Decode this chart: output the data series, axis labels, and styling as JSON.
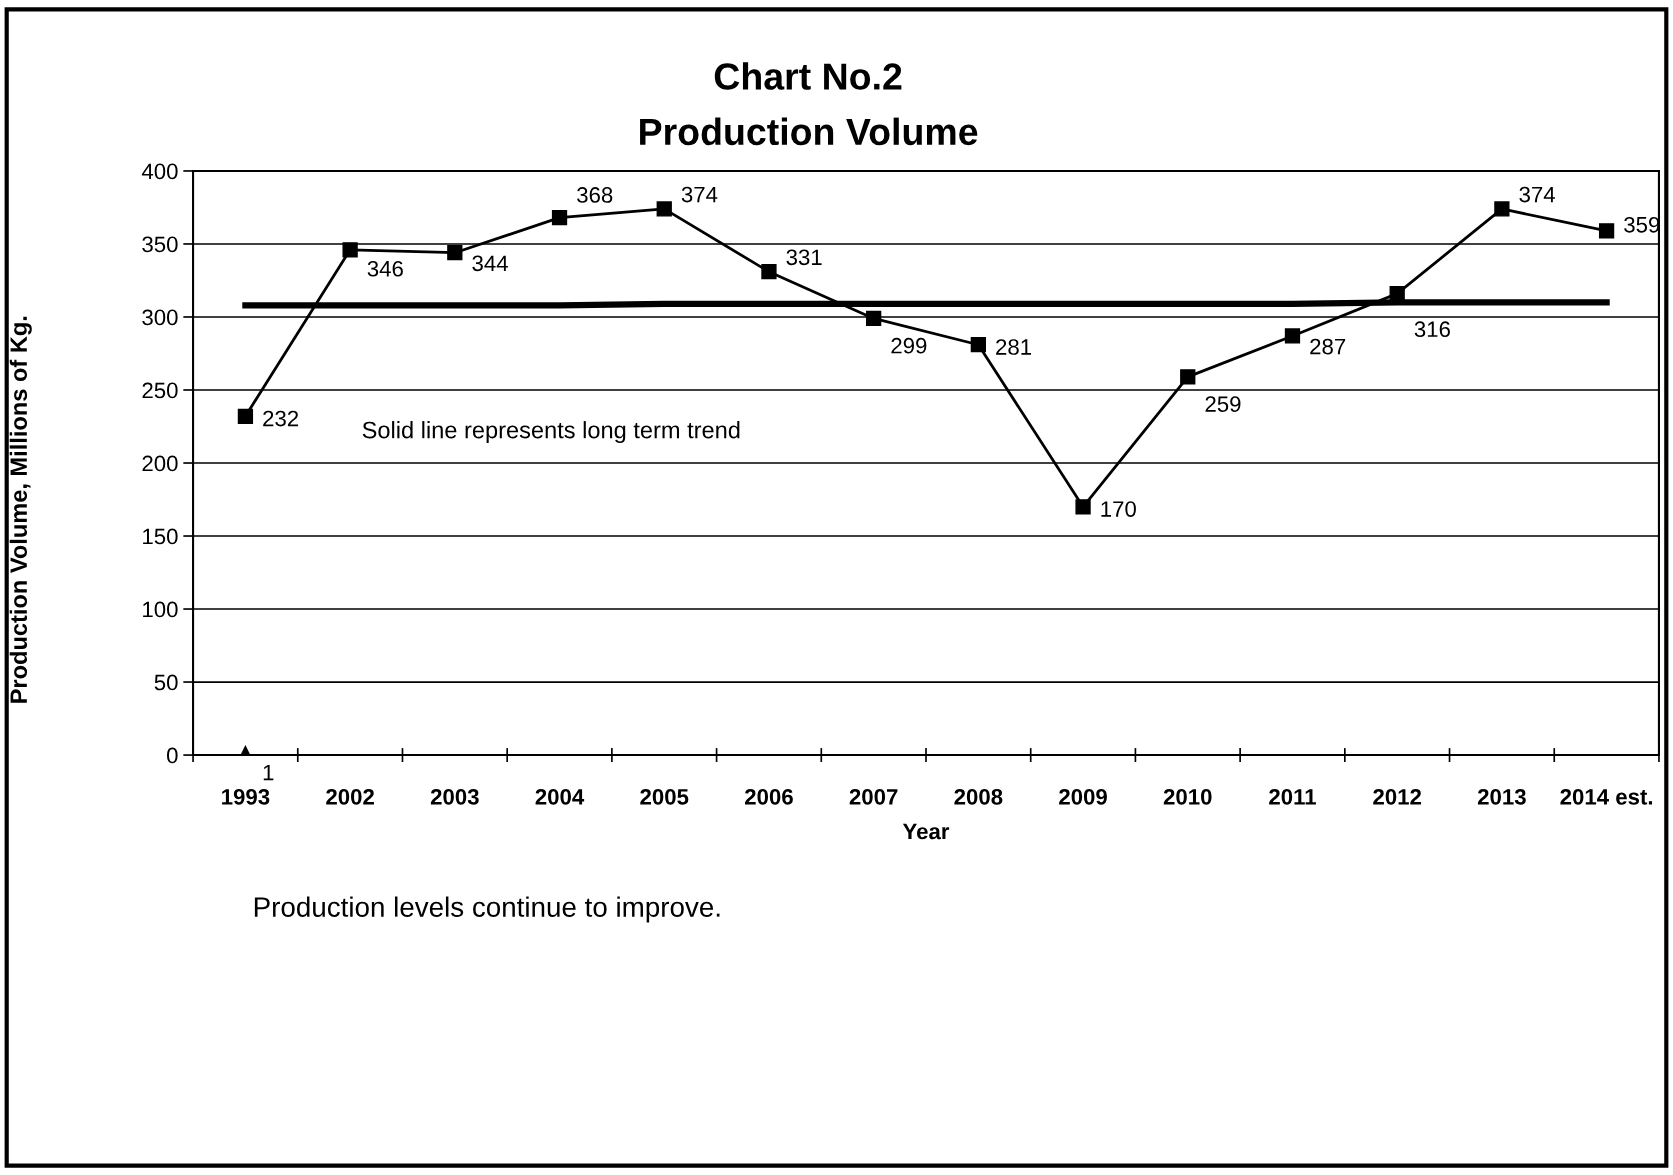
{
  "chart_data": {
    "type": "line",
    "title": "Chart No.2\nProduction Volume",
    "xlabel": "Year",
    "ylabel": "Production Volume, Millions of Kg.",
    "categories": [
      "1993",
      "2002",
      "2003",
      "2004",
      "2005",
      "2006",
      "2007",
      "2008",
      "2009",
      "2010",
      "2011",
      "2012",
      "2013",
      "2014 est."
    ],
    "series": [
      {
        "color": "#000000",
        "marker": "square",
        "values": [
          232,
          346,
          344,
          368,
          374,
          331,
          299,
          281,
          170,
          259,
          287,
          316,
          374,
          359
        ],
        "value_labels": [
          "232",
          "346",
          "344",
          "368",
          "374",
          "331",
          "299",
          "281",
          "170",
          "259",
          "287",
          "316",
          "374",
          "359"
        ]
      },
      {
        "color": "#000000",
        "marker": "triangle",
        "values": [
          1,
          null,
          null,
          null,
          null,
          null,
          null,
          null,
          null,
          null,
          null,
          null,
          null,
          null
        ],
        "value_labels": [
          "1",
          null,
          null,
          null,
          null,
          null,
          null,
          null,
          null,
          null,
          null,
          null,
          null,
          null
        ]
      },
      {
        "type": "line",
        "color": "#000000",
        "marker": "none",
        "values": [
          308,
          308,
          308,
          308,
          309,
          309,
          309,
          309,
          309,
          309,
          309,
          310,
          310,
          310
        ]
      }
    ],
    "ylim": [
      0,
      400
    ],
    "yticks": [
      0,
      50,
      100,
      150,
      200,
      250,
      300,
      350,
      400
    ],
    "grid": "y",
    "line_style": "solid",
    "annotations": [
      "Solid line represents long term trend",
      "Production levels continue to improve."
    ]
  }
}
